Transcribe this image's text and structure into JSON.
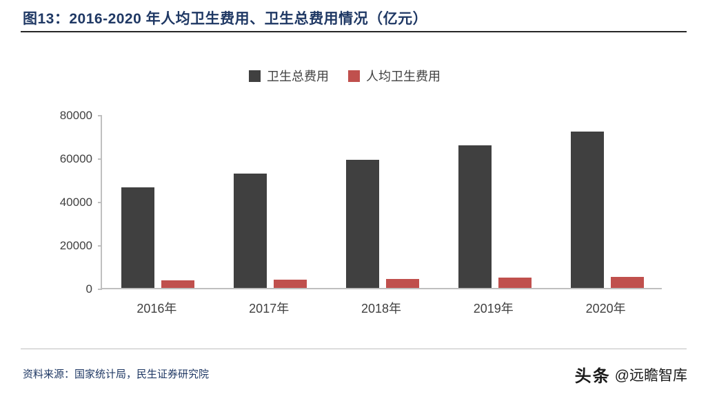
{
  "title": "图13：2016-2020 年人均卫生费用、卫生总费用情况（亿元）",
  "chart_data": {
    "type": "bar",
    "title": "2016-2020 年人均卫生费用、卫生总费用情况（亿元）",
    "categories": [
      "2016年",
      "2017年",
      "2018年",
      "2019年",
      "2020年"
    ],
    "series": [
      {
        "name": "卫生总费用",
        "color": "#404040",
        "values": [
          46400,
          52600,
          59100,
          65800,
          72200
        ]
      },
      {
        "name": "人均卫生费用",
        "color": "#C0504D",
        "values": [
          3350,
          3710,
          4150,
          4700,
          5110
        ]
      }
    ],
    "xlabel": "",
    "ylabel": "",
    "ylim": [
      0,
      80000
    ],
    "yticks": [
      0,
      20000,
      40000,
      60000,
      80000
    ],
    "legend_position": "top",
    "grid": false
  },
  "footer": {
    "source": "资料来源：国家统计局，民生证券研究院",
    "watermark_brand": "头条",
    "watermark_handle": "@远瞻智库"
  },
  "colors": {
    "title": "#1F3864",
    "title_rule": "#262626",
    "axis": "#BFBFBF",
    "tick_label": "#404040",
    "source_text": "#1F3864",
    "watermark": "#1A1A1A"
  }
}
